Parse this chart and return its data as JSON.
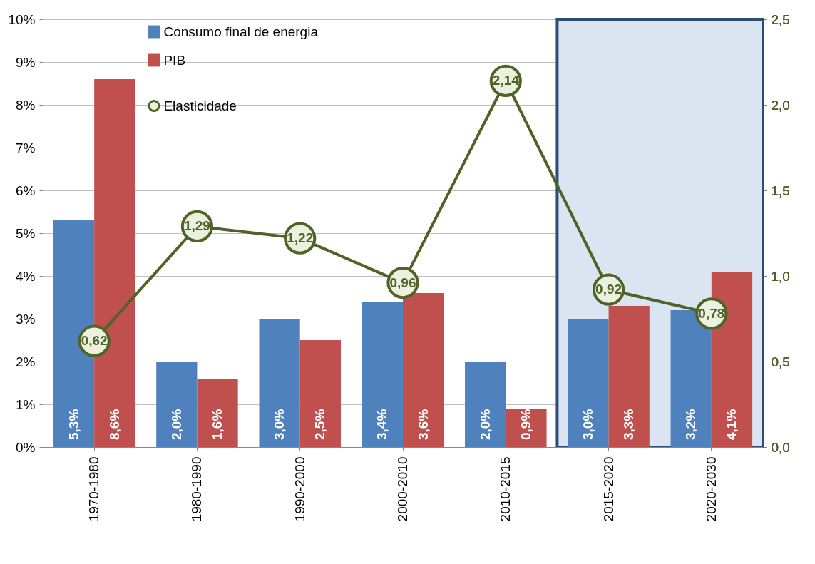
{
  "chart_data": {
    "type": "bar",
    "categories": [
      "1970-1980",
      "1980-1990",
      "1990-2000",
      "2000-2010",
      "2010-2015",
      "2015-2020",
      "2020-2030"
    ],
    "series": [
      {
        "name": "Consumo final de energia",
        "color": "#4f81bd",
        "values": [
          5.3,
          2.0,
          3.0,
          3.4,
          2.0,
          3.0,
          3.2
        ],
        "value_labels": [
          "5,3%",
          "2,0%",
          "3,0%",
          "3,4%",
          "2,0%",
          "3,0%",
          "3,2%"
        ]
      },
      {
        "name": "PIB",
        "color": "#c0504d",
        "values": [
          8.6,
          1.6,
          2.5,
          3.6,
          0.9,
          3.3,
          4.1
        ],
        "value_labels": [
          "8,6%",
          "1,6%",
          "2,5%",
          "3,6%",
          "0,9%",
          "3,3%",
          "4,1%"
        ]
      },
      {
        "name": "Elasticidade",
        "type": "line",
        "axis": "y2",
        "color": "#4f6228",
        "marker": "circle",
        "values": [
          0.62,
          1.29,
          1.22,
          0.96,
          2.14,
          0.92,
          0.78
        ],
        "value_labels": [
          "0,62",
          "1,29",
          "1,22",
          "0,96",
          "2,14",
          "0,92",
          "0,78"
        ]
      }
    ],
    "ylim": [
      0,
      10
    ],
    "yticks": [
      {
        "value": 0,
        "label": "0%"
      },
      {
        "value": 1,
        "label": "1%"
      },
      {
        "value": 2,
        "label": "2%"
      },
      {
        "value": 3,
        "label": "3%"
      },
      {
        "value": 4,
        "label": "4%"
      },
      {
        "value": 5,
        "label": "5%"
      },
      {
        "value": 6,
        "label": "6%"
      },
      {
        "value": 7,
        "label": "7%"
      },
      {
        "value": 8,
        "label": "8%"
      },
      {
        "value": 9,
        "label": "9%"
      },
      {
        "value": 10,
        "label": "10%"
      }
    ],
    "y2lim": [
      0,
      2.5
    ],
    "y2ticks": [
      {
        "value": 0,
        "label": "0,0"
      },
      {
        "value": 0.5,
        "label": "0,5"
      },
      {
        "value": 1,
        "label": "1,0"
      },
      {
        "value": 1.5,
        "label": "1,5"
      },
      {
        "value": 2,
        "label": "2,0"
      },
      {
        "value": 2.5,
        "label": "2,5"
      }
    ],
    "bands": [
      {
        "axis": "x",
        "from": "2015-2020",
        "to": "2020-2030",
        "color": "#dbe5f1"
      }
    ],
    "grid": "y",
    "legend": "top left"
  }
}
